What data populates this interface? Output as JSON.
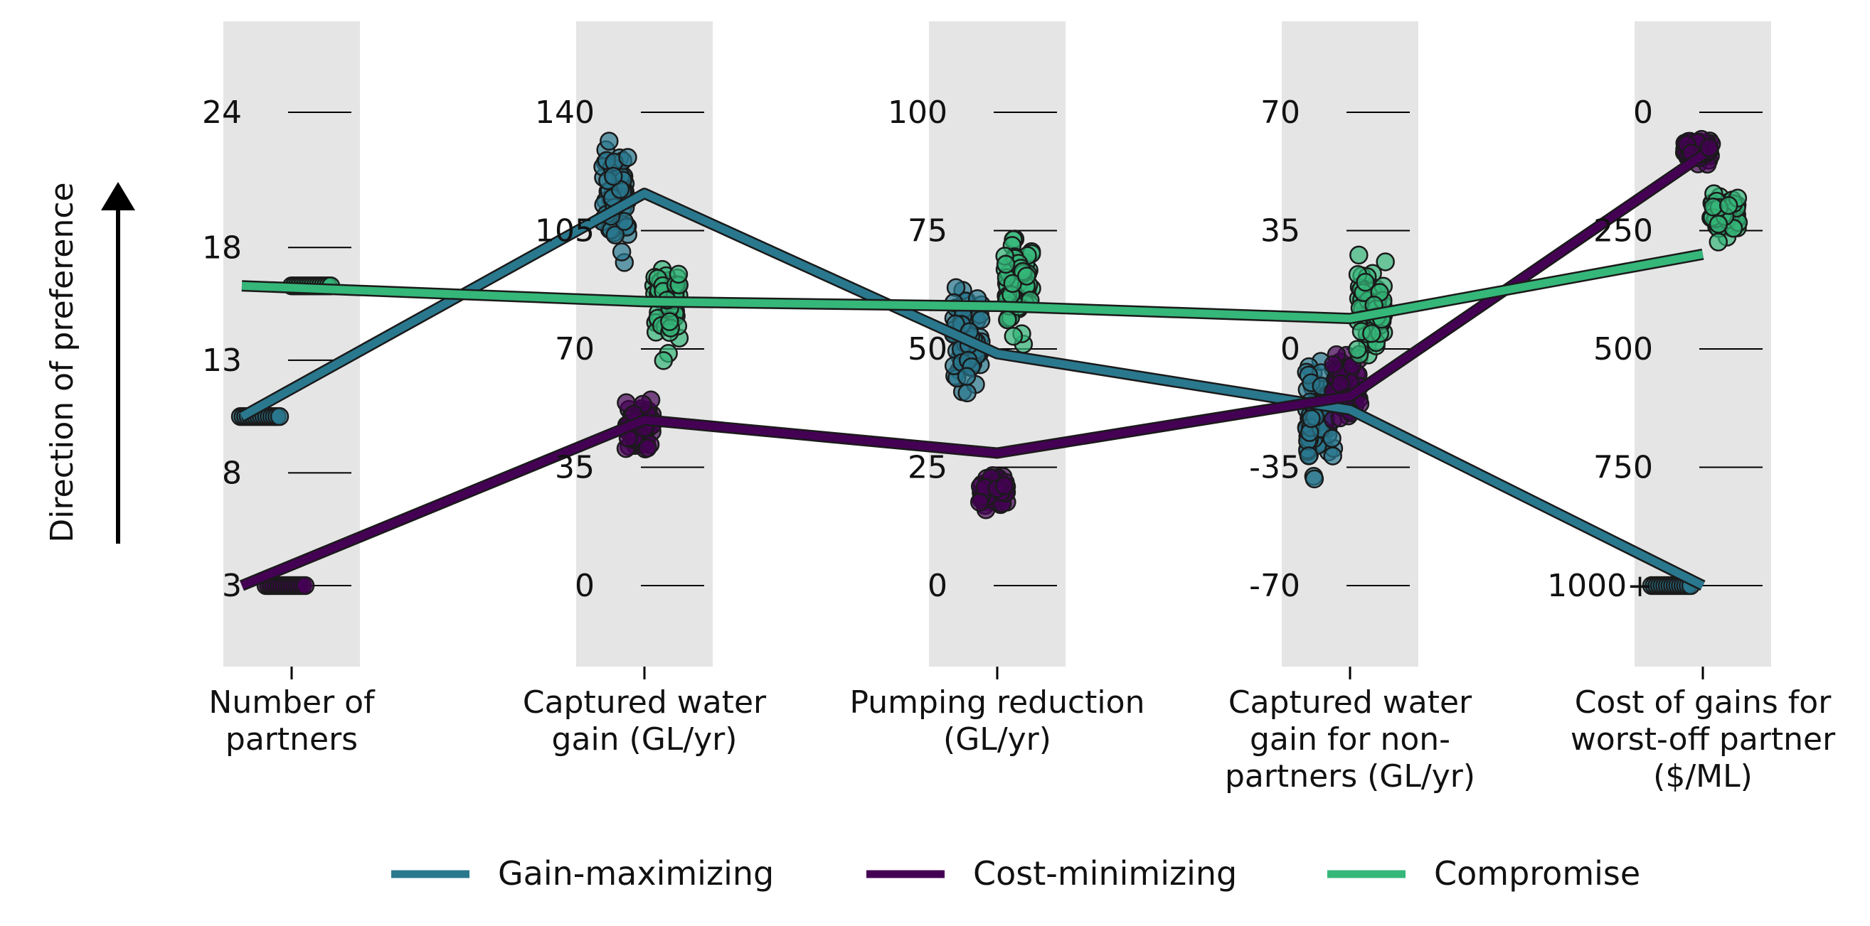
{
  "chart_data": {
    "type": "parallel-coordinates",
    "ylabel": "Direction of preference",
    "axes": [
      {
        "label": [
          "Number of",
          "partners"
        ],
        "ticks": [
          {
            "value": 3,
            "label": "3"
          },
          {
            "value": 8,
            "label": "8"
          },
          {
            "value": 13,
            "label": "13"
          },
          {
            "value": 18,
            "label": "18"
          },
          {
            "value": 24,
            "label": "24"
          }
        ]
      },
      {
        "label": [
          "Captured water",
          "gain (GL/yr)"
        ],
        "ticks": [
          {
            "value": 0,
            "label": "0"
          },
          {
            "value": 35,
            "label": "35"
          },
          {
            "value": 70,
            "label": "70"
          },
          {
            "value": 105,
            "label": "105"
          },
          {
            "value": 140,
            "label": "140"
          }
        ]
      },
      {
        "label": [
          "Pumping reduction",
          "(GL/yr)"
        ],
        "ticks": [
          {
            "value": 0,
            "label": "0"
          },
          {
            "value": 25,
            "label": "25"
          },
          {
            "value": 50,
            "label": "50"
          },
          {
            "value": 75,
            "label": "75"
          },
          {
            "value": 100,
            "label": "100"
          }
        ]
      },
      {
        "label": [
          "Captured water",
          "gain for non-",
          "partners (GL/yr)"
        ],
        "ticks": [
          {
            "value": -70,
            "label": "-70"
          },
          {
            "value": -35,
            "label": "-35"
          },
          {
            "value": 0,
            "label": "0"
          },
          {
            "value": 35,
            "label": "35"
          },
          {
            "value": 70,
            "label": "70"
          }
        ]
      },
      {
        "label": [
          "Cost of gains for",
          "worst-off partner",
          "($/ML)"
        ],
        "ticks": [
          {
            "value": 1000,
            "label": "1000+"
          },
          {
            "value": 750,
            "label": "750"
          },
          {
            "value": 500,
            "label": "500"
          },
          {
            "value": 250,
            "label": "250"
          },
          {
            "value": 0,
            "label": "0"
          }
        ]
      }
    ],
    "series": [
      {
        "name": "Gain-maximizing",
        "color": "#2a788e",
        "values": [
          10.5,
          116,
          49,
          -18,
          1000
        ]
      },
      {
        "name": "Cost-minimizing",
        "color": "#440154",
        "values": [
          3,
          49,
          28,
          -14,
          90
        ]
      },
      {
        "name": "Compromise",
        "color": "#35b779",
        "values": [
          16.3,
          84,
          59,
          9,
          300
        ]
      }
    ],
    "point_clouds": [
      {
        "axis": 0,
        "series": "Gain-maximizing",
        "center": 10.5,
        "spread": 0,
        "count": 16
      },
      {
        "axis": 0,
        "series": "Cost-minimizing",
        "center": 3,
        "spread": 0,
        "count": 16
      },
      {
        "axis": 0,
        "series": "Compromise",
        "center": 16.3,
        "spread": 0,
        "count": 16
      },
      {
        "axis": 1,
        "series": "Gain-maximizing",
        "center": 115,
        "spread": 18,
        "count": 70
      },
      {
        "axis": 1,
        "series": "Cost-minimizing",
        "center": 47,
        "spread": 8,
        "count": 60
      },
      {
        "axis": 1,
        "series": "Compromise",
        "center": 85,
        "spread": 15,
        "count": 60
      },
      {
        "axis": 2,
        "series": "Gain-maximizing",
        "center": 52,
        "spread": 12,
        "count": 70
      },
      {
        "axis": 2,
        "series": "Cost-minimizing",
        "center": 20,
        "spread": 5,
        "count": 60
      },
      {
        "axis": 2,
        "series": "Compromise",
        "center": 62,
        "spread": 12,
        "count": 60
      },
      {
        "axis": 3,
        "series": "Gain-maximizing",
        "center": -22,
        "spread": 20,
        "count": 70
      },
      {
        "axis": 3,
        "series": "Cost-minimizing",
        "center": -12,
        "spread": 10,
        "count": 60
      },
      {
        "axis": 3,
        "series": "Compromise",
        "center": 12,
        "spread": 15,
        "count": 60
      },
      {
        "axis": 4,
        "series": "Gain-maximizing",
        "center": 1000,
        "spread": 0,
        "count": 16
      },
      {
        "axis": 4,
        "series": "Cost-minimizing",
        "center": 80,
        "spread": 25,
        "count": 60
      },
      {
        "axis": 4,
        "series": "Compromise",
        "center": 220,
        "spread": 60,
        "count": 60
      }
    ],
    "legend": "bottom-center",
    "grid": false
  }
}
